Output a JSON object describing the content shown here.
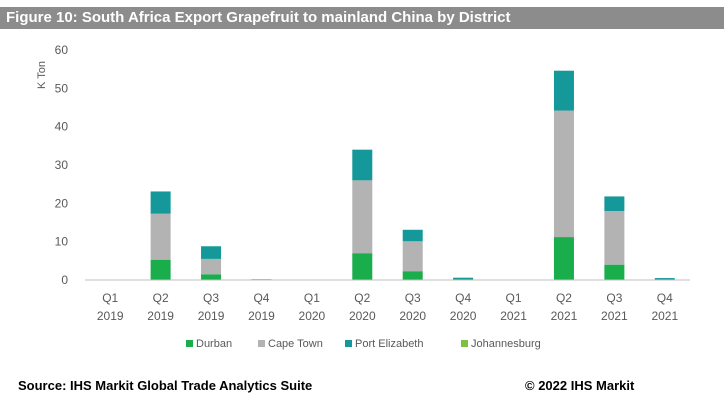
{
  "figure_title": "Figure 10: South Africa Export Grapefruit to mainland China by District",
  "source": "Source: IHS Markit Global Trade Analytics Suite",
  "copyright": "© 2022 IHS Markit",
  "colors": {
    "Durban": "#1aad4b",
    "Cape Town": "#b3b3b3",
    "Port Elizabeth": "#14989a",
    "Johannesburg": "#7cc242",
    "axis": "#bfbfbf",
    "text": "#595959",
    "title_bg": "#8c8c8c"
  },
  "chart_data": {
    "type": "bar",
    "stacked": true,
    "title": "Figure 10: South Africa Export Grapefruit to mainland China by District",
    "ylabel": "K Ton",
    "xlabel": "",
    "ylim": [
      0,
      60
    ],
    "yticks": [
      0,
      10,
      20,
      30,
      40,
      50,
      60
    ],
    "grid": false,
    "legend_position": "bottom",
    "categories": [
      [
        "Q1",
        "2019"
      ],
      [
        "Q2",
        "2019"
      ],
      [
        "Q3",
        "2019"
      ],
      [
        "Q4",
        "2019"
      ],
      [
        "Q1",
        "2020"
      ],
      [
        "Q2",
        "2020"
      ],
      [
        "Q3",
        "2020"
      ],
      [
        "Q4",
        "2020"
      ],
      [
        "Q1",
        "2021"
      ],
      [
        "Q2",
        "2021"
      ],
      [
        "Q3",
        "2021"
      ],
      [
        "Q4",
        "2021"
      ]
    ],
    "series": [
      {
        "name": "Durban",
        "values": [
          0,
          5.3,
          1.5,
          0,
          0,
          7.0,
          2.3,
          0,
          0,
          11.2,
          4.0,
          0
        ]
      },
      {
        "name": "Cape Town",
        "values": [
          0,
          12.0,
          4.0,
          0,
          0,
          19.0,
          7.8,
          0,
          0,
          33.0,
          14.0,
          0
        ]
      },
      {
        "name": "Port Elizabeth",
        "values": [
          0,
          5.8,
          3.3,
          0.2,
          0,
          8.0,
          3.0,
          0.6,
          0,
          10.4,
          3.8,
          0.5
        ]
      },
      {
        "name": "Johannesburg",
        "values": [
          0,
          0,
          0,
          0,
          0,
          0,
          0,
          0,
          0,
          0,
          0,
          0
        ]
      }
    ]
  }
}
